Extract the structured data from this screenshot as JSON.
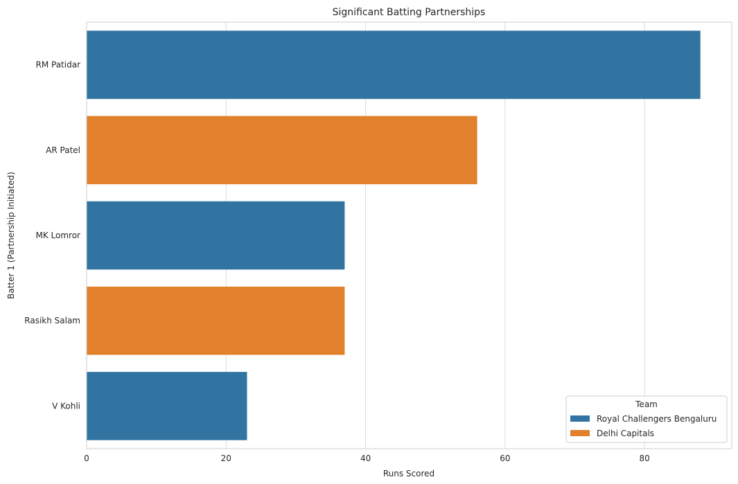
{
  "chart_data": {
    "type": "bar",
    "orientation": "horizontal",
    "title": "Significant Batting Partnerships",
    "xlabel": "Runs Scored",
    "ylabel": "Batter 1 (Partnership Initiated)",
    "categories": [
      "RM Patidar",
      "AR Patel",
      "MK Lomror",
      "Rasikh Salam",
      "V Kohli"
    ],
    "values": [
      88,
      56,
      37,
      37,
      23
    ],
    "bar_team": [
      "Royal Challengers Bengaluru",
      "Delhi Capitals",
      "Royal Challengers Bengaluru",
      "Delhi Capitals",
      "Royal Challengers Bengaluru"
    ],
    "xlim": [
      0,
      92.5
    ],
    "xticks": [
      0,
      20,
      40,
      60,
      80
    ],
    "grid": true,
    "legend": {
      "title": "Team",
      "placement": "bottom-right",
      "entries": [
        {
          "name": "Royal Challengers Bengaluru",
          "color": "#3274a1"
        },
        {
          "name": "Delhi Capitals",
          "color": "#e1812c"
        }
      ]
    }
  }
}
